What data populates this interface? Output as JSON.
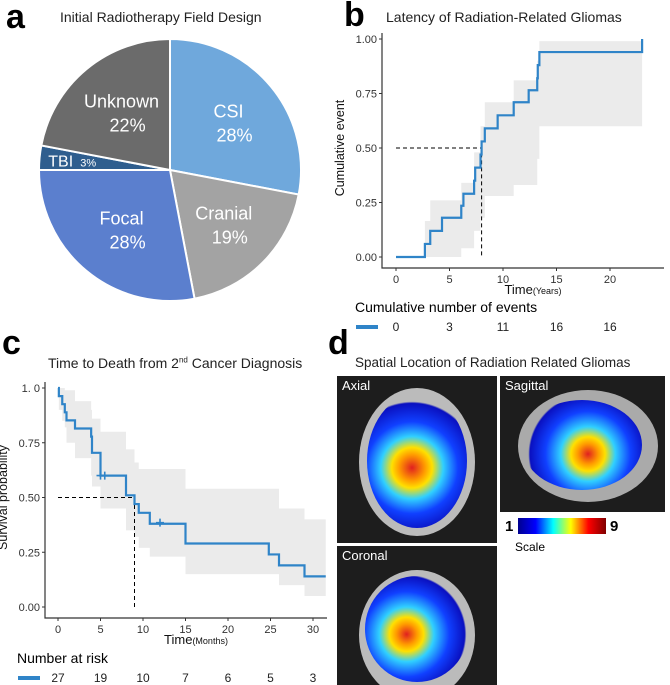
{
  "panels": {
    "a": "a",
    "b": "b",
    "c": "c",
    "d": "d"
  },
  "chart_data": [
    {
      "id": "a",
      "type": "pie",
      "title": "Initial Radiotherapy Field Design",
      "slices": [
        {
          "label": "CSI",
          "value": 28,
          "pct": "28%",
          "color": "#6fa8dc"
        },
        {
          "label": "Cranial",
          "value": 19,
          "pct": "19%",
          "color": "#a3a3a3"
        },
        {
          "label": "Focal",
          "value": 28,
          "pct": "28%",
          "color": "#5b7fce"
        },
        {
          "label": "TBI",
          "value": 3,
          "pct": "3%",
          "color": "#2f5e8e"
        },
        {
          "label": "Unknown",
          "value": 22,
          "pct": "22%",
          "color": "#6b6b6b"
        }
      ]
    },
    {
      "id": "b",
      "type": "line",
      "title": "Latency of Radiation-Related Gliomas",
      "xlabel": "Time",
      "xunit": "(Years)",
      "ylabel": "Cumulative event",
      "xlim": [
        0,
        25
      ],
      "ylim": [
        0,
        1
      ],
      "xticks": [
        "0",
        "5",
        "10",
        "15",
        "20"
      ],
      "yticks": [
        "0.00",
        "0.25",
        "0.50",
        "0.75",
        "1.00"
      ],
      "median": 8,
      "color": "#2f84c8",
      "steps": {
        "t": [
          0,
          2.7,
          3.2,
          4.3,
          6.1,
          6.3,
          7.3,
          7.4,
          7.9,
          8.0,
          8.3,
          9.5,
          11,
          12.4,
          13.2,
          13.25,
          13.4,
          23
        ],
        "y": [
          0,
          0.06,
          0.12,
          0.18,
          0.235,
          0.29,
          0.35,
          0.41,
          0.47,
          0.53,
          0.59,
          0.65,
          0.71,
          0.765,
          0.82,
          0.88,
          0.94,
          1.0
        ],
        "lo": [
          0,
          0,
          0,
          0,
          0.04,
          0.04,
          0.12,
          0.12,
          0.18,
          0.18,
          0.28,
          0.28,
          0.33,
          0.33,
          0.45,
          0.45,
          0.6,
          0.6
        ],
        "hi": [
          0,
          0.165,
          0.26,
          0.26,
          0.34,
          0.34,
          0.48,
          0.48,
          0.6,
          0.6,
          0.71,
          0.71,
          0.81,
          0.81,
          0.9,
          0.9,
          0.99,
          0.99
        ]
      },
      "table": {
        "title": "Cumulative number of events",
        "times": [
          0,
          5,
          10,
          15,
          20
        ],
        "values": [
          "0",
          "3",
          "11",
          "16",
          "16"
        ]
      }
    },
    {
      "id": "c",
      "type": "line",
      "title": "Time to Death from 2",
      "title_sup": "nd",
      "title_end": " Cancer Diagnosis",
      "xlabel": "Time",
      "xunit": "(Months)",
      "ylabel": "Survival probability",
      "xlim": [
        0,
        31.5
      ],
      "ylim": [
        0,
        1
      ],
      "xticks": [
        "0",
        "5",
        "10",
        "15",
        "20",
        "25",
        "30"
      ],
      "yticks": [
        "0.00",
        "0.25",
        "0.50",
        "0.75",
        "1. 0"
      ],
      "median": 9,
      "color": "#2f84c8",
      "steps": {
        "t": [
          0,
          0.1,
          0.5,
          0.8,
          1,
          2,
          3.9,
          4.0,
          5.0,
          8,
          9,
          9.5,
          10.8,
          15,
          24.8,
          26,
          29,
          31.5
        ],
        "y": [
          1,
          0.963,
          0.926,
          0.889,
          0.852,
          0.815,
          0.778,
          0.704,
          0.6,
          0.51,
          0.47,
          0.43,
          0.38,
          0.29,
          0.24,
          0.19,
          0.14,
          0.14
        ],
        "lo": [
          1,
          0.9,
          0.85,
          0.82,
          0.75,
          0.68,
          0.6,
          0.55,
          0.45,
          0.35,
          0.32,
          0.27,
          0.23,
          0.15,
          0.15,
          0.1,
          0.05,
          0.05
        ],
        "hi": [
          1,
          1,
          1,
          0.99,
          0.99,
          0.94,
          0.9,
          0.86,
          0.8,
          0.72,
          0.66,
          0.63,
          0.63,
          0.54,
          0.54,
          0.45,
          0.4,
          0.4
        ]
      },
      "censored": [
        {
          "t": 5,
          "y": 0.6
        },
        {
          "t": 5.5,
          "y": 0.6
        },
        {
          "t": 12,
          "y": 0.385
        }
      ],
      "table": {
        "title": "Number at risk",
        "times": [
          0,
          5,
          10,
          15,
          20,
          25,
          30
        ],
        "values": [
          "27",
          "19",
          "10",
          "7",
          "6",
          "5",
          "3"
        ]
      }
    }
  ],
  "spatial": {
    "title": "Spatial Location of Radiation Related Gliomas",
    "views": [
      "Axial",
      "Sagittal",
      "Coronal"
    ],
    "scale_label": "Scale",
    "scale_min": "1",
    "scale_max": "9"
  }
}
